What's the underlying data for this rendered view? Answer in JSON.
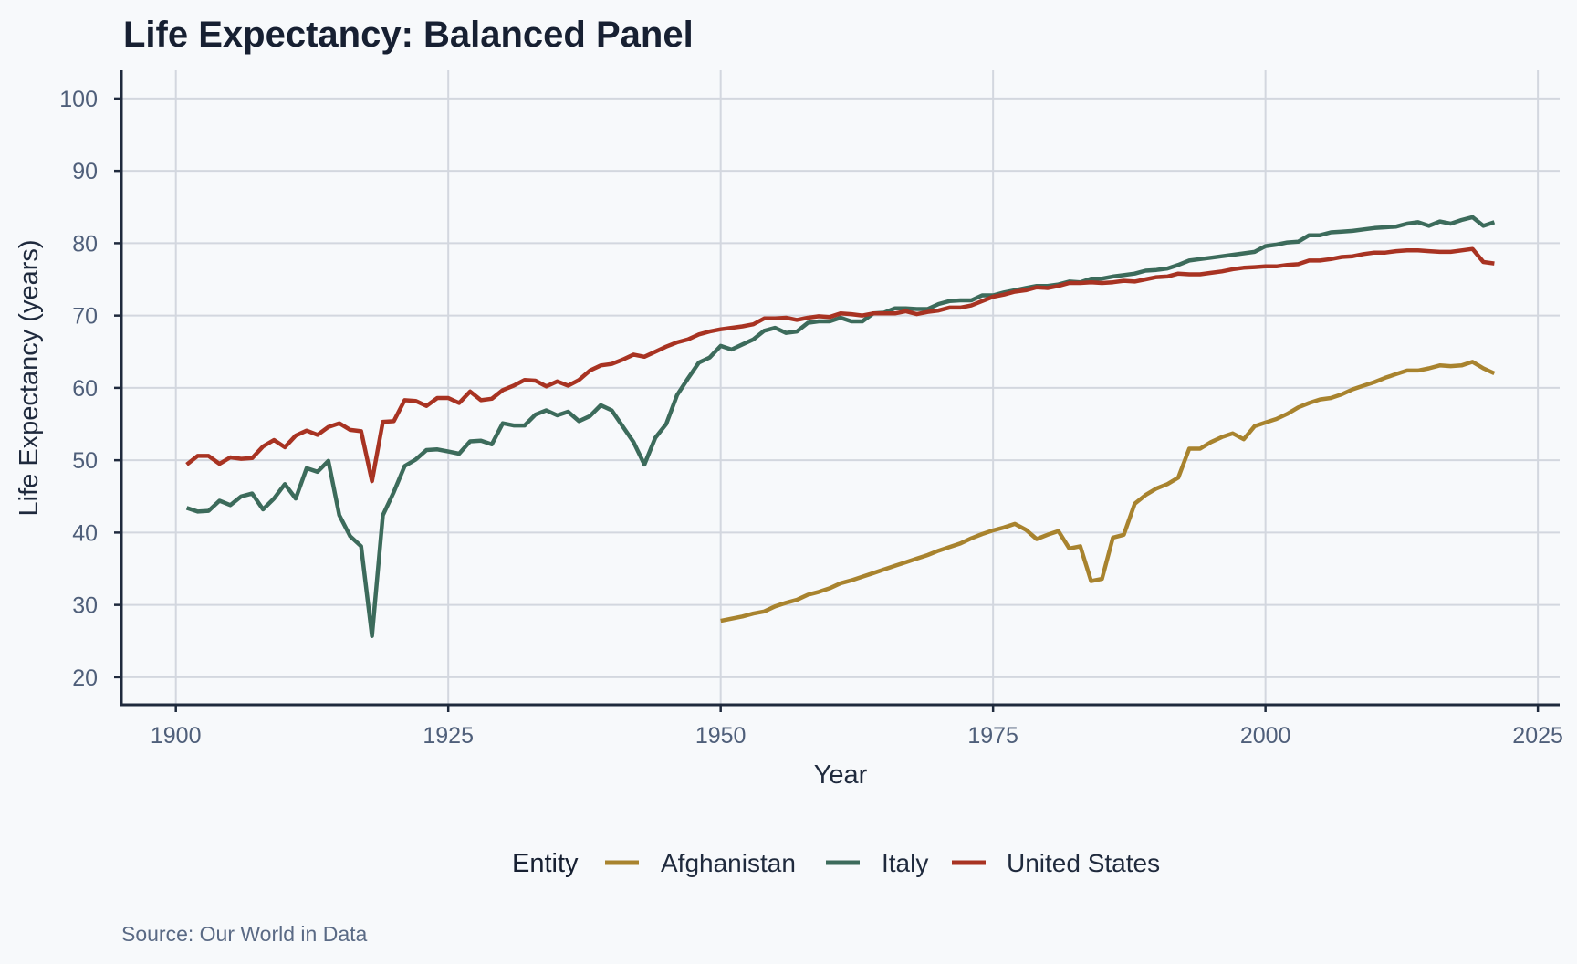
{
  "chart_data": {
    "type": "line",
    "title": "Life Expectancy: Balanced Panel",
    "xlabel": "Year",
    "ylabel": "Life Expectancy (years)",
    "caption": "Source: Our World in Data",
    "xlim": [
      1895,
      2027
    ],
    "ylim": [
      16.2,
      103.9
    ],
    "x_ticks": [
      1900,
      1925,
      1950,
      1975,
      2000,
      2025
    ],
    "y_ticks": [
      20,
      30,
      40,
      50,
      60,
      70,
      80,
      90,
      100
    ],
    "grid": true,
    "legend": {
      "title": "Entity",
      "placement": "bottom"
    },
    "series": [
      {
        "name": "Afghanistan",
        "color": "#a8832e",
        "x_start": 1950,
        "values": [
          27.8,
          28.1,
          28.4,
          28.8,
          29.1,
          29.8,
          30.3,
          30.7,
          31.4,
          31.8,
          32.3,
          33.0,
          33.4,
          33.9,
          34.4,
          34.9,
          35.4,
          35.9,
          36.4,
          36.9,
          37.5,
          38.0,
          38.5,
          39.2,
          39.8,
          40.3,
          40.7,
          41.2,
          40.4,
          39.1,
          39.7,
          40.2,
          37.8,
          38.1,
          33.3,
          33.6,
          39.3,
          39.7,
          44.0,
          45.2,
          46.1,
          46.7,
          47.6,
          51.6,
          51.6,
          52.5,
          53.2,
          53.7,
          52.9,
          54.7,
          55.2,
          55.7,
          56.4,
          57.3,
          57.9,
          58.4,
          58.6,
          59.1,
          59.8,
          60.3,
          60.8,
          61.4,
          61.9,
          62.4,
          62.4,
          62.7,
          63.1,
          63.0,
          63.1,
          63.6,
          62.7,
          62.0
        ]
      },
      {
        "name": "Italy",
        "color": "#3c6b5b",
        "x_start": 1901,
        "values": [
          43.4,
          42.9,
          43.0,
          44.4,
          43.8,
          45.0,
          45.4,
          43.2,
          44.7,
          46.7,
          44.7,
          48.9,
          48.4,
          49.9,
          42.4,
          39.5,
          38.1,
          25.7,
          42.4,
          45.6,
          49.2,
          50.1,
          51.4,
          51.5,
          51.2,
          50.9,
          52.6,
          52.7,
          52.2,
          55.1,
          54.8,
          54.8,
          56.3,
          56.9,
          56.2,
          56.7,
          55.4,
          56.1,
          57.6,
          56.9,
          54.7,
          52.5,
          49.4,
          53.1,
          55.0,
          59.0,
          61.3,
          63.5,
          64.2,
          65.8,
          65.3,
          66.0,
          66.7,
          67.9,
          68.3,
          67.6,
          67.8,
          69.0,
          69.2,
          69.2,
          69.7,
          69.2,
          69.2,
          70.3,
          70.4,
          71.0,
          71.0,
          70.9,
          70.9,
          71.6,
          72.0,
          72.1,
          72.1,
          72.8,
          72.8,
          73.2,
          73.5,
          73.8,
          74.1,
          74.1,
          74.3,
          74.7,
          74.6,
          75.1,
          75.1,
          75.4,
          75.6,
          75.8,
          76.2,
          76.3,
          76.5,
          77.0,
          77.6,
          77.8,
          78.0,
          78.2,
          78.4,
          78.6,
          78.8,
          79.6,
          79.8,
          80.1,
          80.2,
          81.1,
          81.1,
          81.5,
          81.6,
          81.7,
          81.9,
          82.1,
          82.2,
          82.3,
          82.7,
          82.9,
          82.4,
          83.0,
          82.7,
          83.2,
          83.6,
          82.4,
          82.9
        ]
      },
      {
        "name": "United States",
        "color": "#a83322",
        "x_start": 1901,
        "values": [
          49.4,
          50.6,
          50.6,
          49.5,
          50.4,
          50.2,
          50.3,
          51.9,
          52.8,
          51.8,
          53.4,
          54.1,
          53.5,
          54.6,
          55.1,
          54.2,
          54.0,
          47.1,
          55.3,
          55.4,
          58.3,
          58.2,
          57.5,
          58.6,
          58.6,
          57.9,
          59.5,
          58.3,
          58.5,
          59.7,
          60.3,
          61.1,
          61.0,
          60.2,
          60.9,
          60.3,
          61.1,
          62.4,
          63.1,
          63.3,
          63.9,
          64.6,
          64.3,
          65.0,
          65.7,
          66.3,
          66.7,
          67.4,
          67.8,
          68.1,
          68.3,
          68.5,
          68.8,
          69.6,
          69.6,
          69.7,
          69.4,
          69.7,
          69.9,
          69.8,
          70.3,
          70.2,
          70.0,
          70.3,
          70.3,
          70.3,
          70.6,
          70.2,
          70.5,
          70.7,
          71.1,
          71.1,
          71.4,
          72.0,
          72.6,
          72.9,
          73.3,
          73.5,
          73.9,
          73.8,
          74.1,
          74.5,
          74.5,
          74.6,
          74.5,
          74.6,
          74.8,
          74.7,
          75.0,
          75.3,
          75.4,
          75.8,
          75.7,
          75.7,
          75.9,
          76.1,
          76.4,
          76.6,
          76.7,
          76.8,
          76.8,
          77.0,
          77.1,
          77.6,
          77.6,
          77.8,
          78.1,
          78.2,
          78.5,
          78.7,
          78.7,
          78.9,
          79.0,
          79.0,
          78.9,
          78.8,
          78.8,
          79.0,
          79.2,
          77.4,
          77.2
        ]
      }
    ]
  }
}
